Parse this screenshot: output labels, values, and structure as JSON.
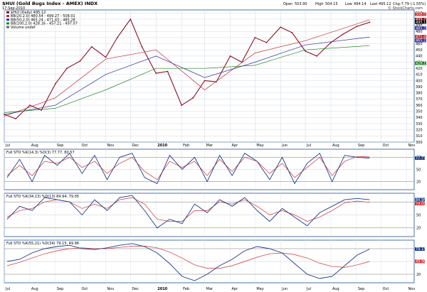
{
  "header": {
    "ticker_title": "$HUI (Gold Bugs Index - AMEX) INDX",
    "date": "17-Sep-2010",
    "open_label": "Open",
    "open": "503.90",
    "high_label": "High",
    "high": "504.15",
    "low_label": "Low",
    "low": "494.14",
    "close_label": "Last",
    "close": "495.12",
    "chg_label": "Chg",
    "chg": "-7.79 (-1.55%)",
    "credit": "© StockCharts.com"
  },
  "legend_main": [
    {
      "label": "$HUI (Daily) 495.12",
      "color": "#8a1020"
    },
    {
      "label": "BB(20,2.0) 480.54 - 499.27 - 508.01",
      "color": "#c0282d"
    },
    {
      "label": "BB(50,2.0) 465.24 - 471.43 - 485.28",
      "color": "#3030a0"
    },
    {
      "label": "BB(100,2.0) 428.16 - 457.21 - 497.07",
      "color": "#208020"
    },
    {
      "label": "Volume undef",
      "color": "#666666"
    }
  ],
  "price_ticks": [
    "510",
    "500",
    "490",
    "480",
    "470",
    "460",
    "450",
    "440",
    "430",
    "420",
    "410",
    "400",
    "390",
    "380",
    "370",
    "360",
    "350",
    "340",
    "330",
    "320",
    "310",
    "300"
  ],
  "price_markers": [
    {
      "label": "508.01",
      "value": 508.0,
      "color": "#c0282d"
    },
    {
      "label": "499.27",
      "value": 499.3,
      "color": "#8a1020"
    },
    {
      "label": "495.12",
      "value": 495.1,
      "color": "#000000"
    },
    {
      "label": "485.28",
      "value": 485.3,
      "color": "#3030a0"
    },
    {
      "label": "471.43",
      "value": 471.4,
      "color": "#c0282d"
    },
    {
      "label": "465.24",
      "value": 465.2,
      "color": "#3030a0"
    },
    {
      "label": "428.16",
      "value": 428.2,
      "color": "#208020"
    }
  ],
  "months": [
    "Jul",
    "Aug",
    "Sep",
    "Oct",
    "Nov",
    "Dec",
    "2010",
    "Feb",
    "Mar",
    "Apr",
    "May",
    "Jun",
    "Jul",
    "Aug",
    "Sep",
    "Oct",
    "Nov"
  ],
  "panels": [
    {
      "legend": "Full STO %K(14,3) %D(3) 77.77, 80.57",
      "marker_k": "77.77",
      "ticks": [
        "80",
        "50",
        "20"
      ]
    },
    {
      "legend": "Full STO %K(34,13) %D(13) 84.94, 79.05",
      "marker_k": "84.94",
      "marker_d": "79.05",
      "ticks": [
        "80",
        "50",
        "20"
      ]
    },
    {
      "legend": "Full STO %K(55,21) %D(34) 79.15, 49.96",
      "marker_k": "79.15",
      "marker_d": "49.96",
      "ticks": [
        "80",
        "50",
        "20"
      ]
    }
  ],
  "chart_data": {
    "type": "line",
    "x_range": [
      "2009-07-01",
      "2010-11-10"
    ],
    "price_ylim": [
      300,
      515
    ],
    "price_series": [
      {
        "name": "$HUI (Daily) 495.12",
        "color": "#8a1020",
        "x": [
          "2009-07-01",
          "2009-07-15",
          "2009-08-01",
          "2009-08-15",
          "2009-09-01",
          "2009-09-15",
          "2009-10-01",
          "2009-10-15",
          "2009-11-01",
          "2009-11-15",
          "2009-12-01",
          "2009-12-15",
          "2010-01-01",
          "2010-01-15",
          "2010-02-01",
          "2010-02-15",
          "2010-03-01",
          "2010-03-15",
          "2010-04-01",
          "2010-04-15",
          "2010-05-01",
          "2010-05-15",
          "2010-06-01",
          "2010-06-15",
          "2010-07-01",
          "2010-07-15",
          "2010-08-01",
          "2010-08-15",
          "2010-09-01",
          "2010-09-17"
        ],
        "values": [
          345,
          338,
          360,
          352,
          395,
          420,
          432,
          455,
          438,
          470,
          500,
          455,
          412,
          415,
          360,
          372,
          400,
          398,
          440,
          430,
          470,
          462,
          487,
          478,
          448,
          440,
          462,
          475,
          488,
          495
        ]
      },
      {
        "name": "BB(20,2.0) mid",
        "color": "#c0282d",
        "x": [
          "2009-07-01",
          "2009-09-01",
          "2009-11-01",
          "2010-01-01",
          "2010-03-01",
          "2010-05-01",
          "2010-07-01",
          "2010-09-17"
        ],
        "values": [
          342,
          372,
          435,
          450,
          385,
          445,
          465,
          499
        ]
      },
      {
        "name": "BB(50,2.0) mid",
        "color": "#3030a0",
        "x": [
          "2009-07-01",
          "2009-09-01",
          "2009-11-01",
          "2010-01-01",
          "2010-03-01",
          "2010-05-01",
          "2010-07-01",
          "2010-09-17"
        ],
        "values": [
          345,
          360,
          410,
          440,
          405,
          430,
          458,
          471
        ]
      },
      {
        "name": "BB(100,2.0) mid",
        "color": "#208020",
        "x": [
          "2009-07-01",
          "2009-09-01",
          "2009-11-01",
          "2010-01-01",
          "2010-03-01",
          "2010-05-01",
          "2010-07-01",
          "2010-09-17"
        ],
        "values": [
          348,
          355,
          385,
          420,
          420,
          425,
          450,
          457
        ]
      }
    ],
    "stoch_panels": [
      {
        "k": [
          30,
          75,
          20,
          85,
          60,
          90,
          40,
          85,
          25,
          80,
          90,
          30,
          15,
          85,
          50,
          80,
          20,
          85,
          35,
          90,
          70,
          25,
          80,
          15,
          65,
          90,
          20,
          85,
          80,
          78
        ],
        "d": [
          35,
          60,
          35,
          70,
          65,
          80,
          55,
          70,
          40,
          65,
          80,
          45,
          25,
          70,
          55,
          70,
          35,
          75,
          45,
          80,
          70,
          40,
          65,
          30,
          55,
          80,
          35,
          70,
          82,
          81
        ]
      },
      {
        "k": [
          40,
          70,
          60,
          90,
          85,
          80,
          50,
          85,
          60,
          90,
          95,
          60,
          20,
          40,
          30,
          75,
          55,
          85,
          70,
          90,
          60,
          35,
          65,
          45,
          25,
          55,
          70,
          85,
          88,
          85
        ],
        "d": [
          45,
          60,
          65,
          80,
          85,
          80,
          65,
          75,
          65,
          85,
          90,
          75,
          40,
          35,
          35,
          60,
          60,
          80,
          75,
          85,
          70,
          50,
          60,
          50,
          35,
          45,
          60,
          78,
          82,
          79
        ]
      },
      {
        "k": [
          50,
          55,
          70,
          80,
          85,
          88,
          80,
          78,
          82,
          88,
          92,
          85,
          70,
          45,
          15,
          5,
          20,
          40,
          55,
          75,
          85,
          80,
          70,
          45,
          20,
          10,
          15,
          40,
          65,
          79
        ],
        "d": [
          40,
          48,
          58,
          68,
          75,
          80,
          82,
          80,
          80,
          83,
          86,
          86,
          82,
          72,
          58,
          42,
          34,
          34,
          40,
          50,
          60,
          68,
          70,
          66,
          58,
          46,
          38,
          36,
          42,
          50
        ]
      }
    ],
    "stoch_ylim": [
      0,
      100
    ],
    "stoch_colors": {
      "k": "#1a3a8a",
      "d": "#d03030"
    }
  }
}
